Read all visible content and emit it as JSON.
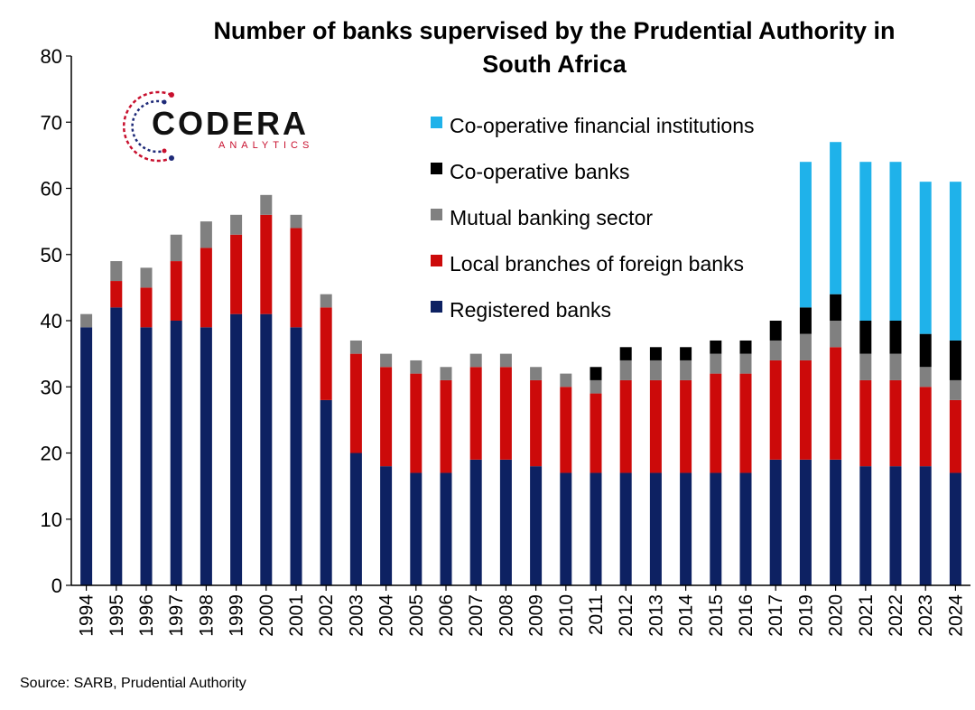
{
  "logo": {
    "main": "CODERA",
    "sub": "ANALYTICS"
  },
  "source": "Source: SARB, Prudential Authority",
  "chart_data": {
    "type": "bar",
    "stacked": true,
    "title": "Number of banks supervised by the Prudential Authority in South Africa",
    "title_lines": [
      "Number of banks supervised by the Prudential Authority in",
      "South Africa"
    ],
    "xlabel": "",
    "ylabel": "",
    "ylim": [
      0,
      80
    ],
    "yticks": [
      0,
      10,
      20,
      30,
      40,
      50,
      60,
      70,
      80
    ],
    "grid": false,
    "legend_position": "top-right",
    "categories": [
      "1994",
      "1995",
      "1996",
      "1997",
      "1998",
      "1999",
      "2000",
      "2001",
      "2002",
      "2003",
      "2004",
      "2005",
      "2006",
      "2007",
      "2008",
      "2009",
      "2010",
      "2011",
      "2012",
      "2013",
      "2014",
      "2015",
      "2016",
      "2017",
      "2019",
      "2020",
      "2021",
      "2022",
      "2023",
      "2024"
    ],
    "series": [
      {
        "name": "Registered banks",
        "color": "#0d2162",
        "values": [
          39,
          42,
          39,
          40,
          39,
          41,
          41,
          39,
          28,
          20,
          18,
          17,
          17,
          19,
          19,
          18,
          17,
          17,
          17,
          17,
          17,
          17,
          17,
          19,
          19,
          19,
          18,
          18,
          18,
          17
        ]
      },
      {
        "name": "Local branches of foreign banks",
        "color": "#cc0a0a",
        "values": [
          0,
          4,
          6,
          9,
          12,
          12,
          15,
          15,
          14,
          15,
          15,
          15,
          14,
          14,
          14,
          13,
          13,
          12,
          14,
          14,
          14,
          15,
          15,
          15,
          15,
          17,
          13,
          13,
          12,
          11
        ]
      },
      {
        "name": "Mutual banking sector",
        "color": "#808080",
        "values": [
          2,
          3,
          3,
          4,
          4,
          3,
          3,
          2,
          2,
          2,
          2,
          2,
          2,
          2,
          2,
          2,
          2,
          2,
          3,
          3,
          3,
          3,
          3,
          3,
          4,
          4,
          4,
          4,
          3,
          3
        ]
      },
      {
        "name": "Co-operative banks",
        "color": "#000000",
        "values": [
          0,
          0,
          0,
          0,
          0,
          0,
          0,
          0,
          0,
          0,
          0,
          0,
          0,
          0,
          0,
          0,
          0,
          2,
          2,
          2,
          2,
          2,
          2,
          3,
          4,
          4,
          5,
          5,
          5,
          6
        ]
      },
      {
        "name": "Co-operative financial institutions",
        "color": "#1fb2ea",
        "values": [
          0,
          0,
          0,
          0,
          0,
          0,
          0,
          0,
          0,
          0,
          0,
          0,
          0,
          0,
          0,
          0,
          0,
          0,
          0,
          0,
          0,
          0,
          0,
          0,
          22,
          23,
          24,
          24,
          23,
          24
        ]
      }
    ],
    "legend_order": [
      "Co-operative financial institutions",
      "Co-operative banks",
      "Mutual banking sector",
      "Local branches of foreign banks",
      "Registered banks"
    ]
  }
}
